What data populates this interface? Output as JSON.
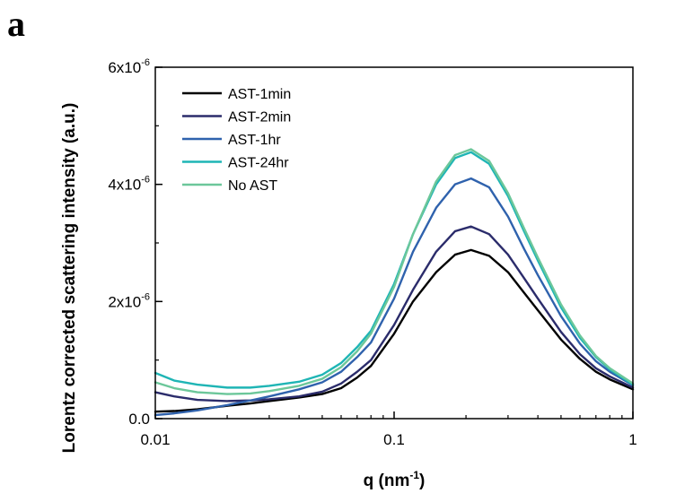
{
  "panel_label": "a",
  "chart_data": {
    "type": "line",
    "xscale": "log",
    "xlim": [
      0.01,
      1
    ],
    "ylim": [
      0,
      6e-06
    ],
    "grid": false,
    "legend_position": "top-left",
    "xlabel": {
      "main": "q (nm",
      "sup": "-1",
      "tail": ")"
    },
    "ylabel": "Lorentz corrected scattering intensity (a.u.)",
    "xticks": [
      {
        "value": 0.01,
        "label": "0.01"
      },
      {
        "value": 0.1,
        "label": "0.1"
      },
      {
        "value": 1,
        "label": "1"
      }
    ],
    "yticks": [
      {
        "value": 0,
        "label": "0.0",
        "sup": ""
      },
      {
        "value": 2e-06,
        "label": "2x10",
        "sup": "-6"
      },
      {
        "value": 4e-06,
        "label": "4x10",
        "sup": "-6"
      },
      {
        "value": 6e-06,
        "label": "6x10",
        "sup": "-6"
      }
    ],
    "series": [
      {
        "name": "AST-1min",
        "color": "#000000",
        "x": [
          0.01,
          0.012,
          0.015,
          0.02,
          0.025,
          0.03,
          0.04,
          0.05,
          0.06,
          0.07,
          0.08,
          0.1,
          0.12,
          0.15,
          0.18,
          0.21,
          0.25,
          0.3,
          0.35,
          0.4,
          0.5,
          0.6,
          0.7,
          0.8,
          1.0
        ],
        "y": [
          1.2e-07,
          1.3e-07,
          1.6e-07,
          2.2e-07,
          2.6e-07,
          3e-07,
          3.6e-07,
          4.2e-07,
          5.2e-07,
          7e-07,
          9e-07,
          1.45e-06,
          2e-06,
          2.5e-06,
          2.8e-06,
          2.88e-06,
          2.78e-06,
          2.5e-06,
          2.15e-06,
          1.85e-06,
          1.35e-06,
          1.02e-06,
          8e-07,
          6.7e-07,
          5e-07
        ]
      },
      {
        "name": "AST-2min",
        "color": "#2b2c6b",
        "x": [
          0.01,
          0.012,
          0.015,
          0.02,
          0.025,
          0.03,
          0.04,
          0.05,
          0.06,
          0.07,
          0.08,
          0.1,
          0.12,
          0.15,
          0.18,
          0.21,
          0.25,
          0.3,
          0.35,
          0.4,
          0.5,
          0.6,
          0.7,
          0.8,
          1.0
        ],
        "y": [
          4.5e-07,
          3.8e-07,
          3.2e-07,
          3e-07,
          3.1e-07,
          3.3e-07,
          3.8e-07,
          4.6e-07,
          6e-07,
          8e-07,
          1e-06,
          1.6e-06,
          2.2e-06,
          2.85e-06,
          3.2e-06,
          3.28e-06,
          3.15e-06,
          2.8e-06,
          2.4e-06,
          2.05e-06,
          1.48e-06,
          1.1e-06,
          8.6e-07,
          7.2e-07,
          5.3e-07
        ]
      },
      {
        "name": "AST-1hr",
        "color": "#2f62ad",
        "x": [
          0.01,
          0.012,
          0.015,
          0.02,
          0.025,
          0.03,
          0.04,
          0.05,
          0.06,
          0.07,
          0.08,
          0.1,
          0.12,
          0.15,
          0.18,
          0.21,
          0.25,
          0.3,
          0.35,
          0.4,
          0.5,
          0.6,
          0.7,
          0.8,
          1.0
        ],
        "y": [
          6e-08,
          9e-08,
          1.4e-07,
          2.3e-07,
          3.1e-07,
          3.8e-07,
          5e-07,
          6.2e-07,
          8e-07,
          1.05e-06,
          1.3e-06,
          2.05e-06,
          2.85e-06,
          3.6e-06,
          4e-06,
          4.1e-06,
          3.95e-06,
          3.45e-06,
          2.9e-06,
          2.45e-06,
          1.75e-06,
          1.28e-06,
          9.8e-07,
          8e-07,
          5.7e-07
        ]
      },
      {
        "name": "AST-24hr",
        "color": "#1fb5b5",
        "x": [
          0.01,
          0.012,
          0.015,
          0.02,
          0.025,
          0.03,
          0.04,
          0.05,
          0.06,
          0.07,
          0.08,
          0.1,
          0.12,
          0.15,
          0.18,
          0.21,
          0.25,
          0.3,
          0.35,
          0.4,
          0.5,
          0.6,
          0.7,
          0.8,
          1.0
        ],
        "y": [
          7.8e-07,
          6.5e-07,
          5.8e-07,
          5.3e-07,
          5.3e-07,
          5.6e-07,
          6.3e-07,
          7.5e-07,
          9.5e-07,
          1.22e-06,
          1.5e-06,
          2.3e-06,
          3.15e-06,
          4e-06,
          4.45e-06,
          4.55e-06,
          4.35e-06,
          3.8e-06,
          3.2e-06,
          2.7e-06,
          1.9e-06,
          1.38e-06,
          1.05e-06,
          8.4e-07,
          5.8e-07
        ]
      },
      {
        "name": "No AST",
        "color": "#6cc79a",
        "x": [
          0.01,
          0.012,
          0.015,
          0.02,
          0.025,
          0.03,
          0.04,
          0.05,
          0.06,
          0.07,
          0.08,
          0.1,
          0.12,
          0.15,
          0.18,
          0.21,
          0.25,
          0.3,
          0.35,
          0.4,
          0.5,
          0.6,
          0.7,
          0.8,
          1.0
        ],
        "y": [
          6.2e-07,
          5.2e-07,
          4.5e-07,
          4.2e-07,
          4.3e-07,
          4.7e-07,
          5.6e-07,
          6.8e-07,
          8.8e-07,
          1.15e-06,
          1.45e-06,
          2.25e-06,
          3.15e-06,
          4.05e-06,
          4.5e-06,
          4.6e-06,
          4.4e-06,
          3.85e-06,
          3.25e-06,
          2.75e-06,
          1.95e-06,
          1.42e-06,
          1.07e-06,
          8.6e-07,
          6e-07
        ]
      }
    ]
  }
}
